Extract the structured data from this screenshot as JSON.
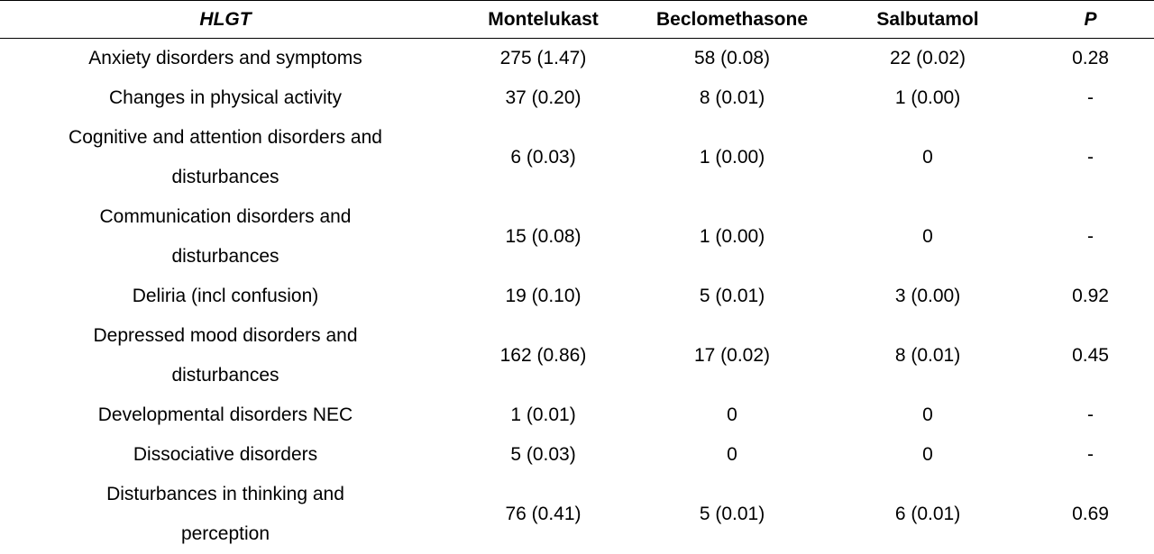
{
  "table": {
    "headers": [
      "HLGT",
      "Montelukast",
      "Beclomethasone",
      "Salbutamol",
      "P"
    ],
    "rows": [
      {
        "hlgt": "Anxiety disorders and symptoms",
        "montelukast": "275 (1.47)",
        "beclomethasone": "58 (0.08)",
        "salbutamol": "22 (0.02)",
        "p": "0.28"
      },
      {
        "hlgt": "Changes in physical activity",
        "montelukast": "37 (0.20)",
        "beclomethasone": "8 (0.01)",
        "salbutamol": "1 (0.00)",
        "p": "-"
      },
      {
        "hlgt": "Cognitive and attention disorders and disturbances",
        "montelukast": "6 (0.03)",
        "beclomethasone": "1 (0.00)",
        "salbutamol": "0",
        "p": "-"
      },
      {
        "hlgt": "Communication disorders and disturbances",
        "montelukast": "15 (0.08)",
        "beclomethasone": "1 (0.00)",
        "salbutamol": "0",
        "p": "-"
      },
      {
        "hlgt": "Deliria (incl confusion)",
        "montelukast": "19 (0.10)",
        "beclomethasone": "5 (0.01)",
        "salbutamol": "3 (0.00)",
        "p": "0.92"
      },
      {
        "hlgt": "Depressed mood disorders and disturbances",
        "montelukast": "162 (0.86)",
        "beclomethasone": "17 (0.02)",
        "salbutamol": "8 (0.01)",
        "p": "0.45"
      },
      {
        "hlgt": "Developmental disorders NEC",
        "montelukast": "1 (0.01)",
        "beclomethasone": "0",
        "salbutamol": "0",
        "p": "-"
      },
      {
        "hlgt": "Dissociative disorders",
        "montelukast": "5 (0.03)",
        "beclomethasone": "0",
        "salbutamol": "0",
        "p": "-"
      },
      {
        "hlgt": "Disturbances in thinking and perception",
        "montelukast": "76 (0.41)",
        "beclomethasone": "5 (0.01)",
        "salbutamol": "6 (0.01)",
        "p": "0.69"
      }
    ]
  }
}
